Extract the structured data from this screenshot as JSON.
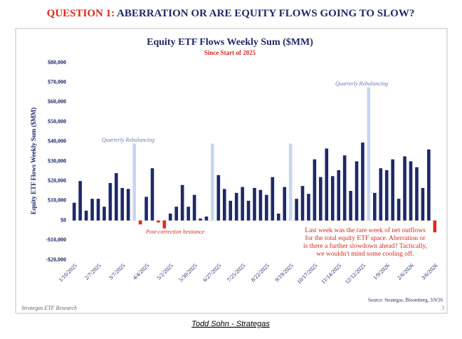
{
  "slide": {
    "title_prefix": "QUESTION 1:",
    "title": "ABERRATION OR ARE EQUITY FLOWS GOING TO SLOW?",
    "footer": "Strategas ETF Research",
    "page": "3",
    "caption": "Todd Sohn - Strategas"
  },
  "chart_data": {
    "type": "bar",
    "title": "Equity ETF Flows Weekly Sum ($MM)",
    "subtitle": "Since Start of 2025",
    "y_label": "Equity ETF Flows Weekly Sum ($MM)",
    "source": "Source: Strategas, Bloomberg, 3/9/26",
    "categories": [
      "1/10/2025",
      null,
      null,
      null,
      "2/7/2025",
      null,
      null,
      null,
      "3/7/2025",
      null,
      null,
      null,
      "4/4/2025",
      null,
      null,
      null,
      "5/2/2025",
      null,
      null,
      null,
      "5/30/2025",
      null,
      null,
      null,
      "6/27/2025",
      null,
      null,
      null,
      "7/25/2025",
      null,
      null,
      null,
      "8/22/2025",
      null,
      null,
      null,
      "9/19/2025",
      null,
      null,
      null,
      "10/17/2025",
      null,
      null,
      null,
      "11/14/2025",
      null,
      null,
      null,
      "12/12/2025",
      null,
      null,
      null,
      "1/9/2026",
      null,
      null,
      null,
      "2/6/2026",
      null,
      null,
      null,
      "3/6/2026"
    ],
    "values": [
      9000,
      20000,
      5000,
      11000,
      11000,
      7000,
      19000,
      24000,
      16500,
      16000,
      39000,
      -2000,
      12000,
      26500,
      -1000,
      -4000,
      3500,
      7000,
      18000,
      7000,
      13000,
      1000,
      2000,
      39000,
      23000,
      16000,
      10000,
      14000,
      17000,
      10000,
      16500,
      15500,
      13000,
      22000,
      3500,
      17000,
      39000,
      11000,
      17500,
      13500,
      31000,
      22000,
      36500,
      22500,
      25500,
      33000,
      15000,
      30000,
      39500,
      67500,
      14000,
      26500,
      25500,
      31000,
      11000,
      32500,
      30000,
      27000,
      16500,
      36000,
      -6000
    ],
    "colors": [
      "#1f2868",
      "#1f2868",
      "#1f2868",
      "#1f2868",
      "#1f2868",
      "#1f2868",
      "#1f2868",
      "#1f2868",
      "#1f2868",
      "#1f2868",
      "#c9d6f0",
      "#e3281c",
      "#1f2868",
      "#1f2868",
      "#e3281c",
      "#e3281c",
      "#1f2868",
      "#1f2868",
      "#1f2868",
      "#1f2868",
      "#1f2868",
      "#1f2868",
      "#1f2868",
      "#c9d6f0",
      "#1f2868",
      "#1f2868",
      "#1f2868",
      "#1f2868",
      "#1f2868",
      "#1f2868",
      "#1f2868",
      "#1f2868",
      "#1f2868",
      "#1f2868",
      "#1f2868",
      "#1f2868",
      "#c9d6f0",
      "#1f2868",
      "#1f2868",
      "#1f2868",
      "#1f2868",
      "#1f2868",
      "#1f2868",
      "#1f2868",
      "#1f2868",
      "#1f2868",
      "#1f2868",
      "#1f2868",
      "#1f2868",
      "#c9d6f0",
      "#1f2868",
      "#1f2868",
      "#1f2868",
      "#1f2868",
      "#1f2868",
      "#1f2868",
      "#1f2868",
      "#1f2868",
      "#1f2868",
      "#1f2868",
      "#e3281c"
    ],
    "ylim": [
      -20000,
      80000
    ],
    "yticks": [
      {
        "value": -20000,
        "label": "-$20,000"
      },
      {
        "value": -10000,
        "label": "-$10,000"
      },
      {
        "value": 0,
        "label": "$0"
      },
      {
        "value": 10000,
        "label": "$10,000"
      },
      {
        "value": 20000,
        "label": "$20,000"
      },
      {
        "value": 30000,
        "label": "$30,000"
      },
      {
        "value": 40000,
        "label": "$40,000"
      },
      {
        "value": 50000,
        "label": "$50,000"
      },
      {
        "value": 60000,
        "label": "$60,000"
      },
      {
        "value": 70000,
        "label": "$70,000"
      },
      {
        "value": 80000,
        "label": "$80,000"
      }
    ],
    "annotations": [
      "Quarterly Rebalancing",
      "Quarterly Rebalancing",
      "Post-correction hesitance"
    ],
    "note": [
      "Last week was the rare week of net outflows",
      "for the total equity ETF space. Aberration or",
      "is there a further slowdown ahead? Tactically,",
      "we wouldn't mind some cooling off."
    ]
  }
}
